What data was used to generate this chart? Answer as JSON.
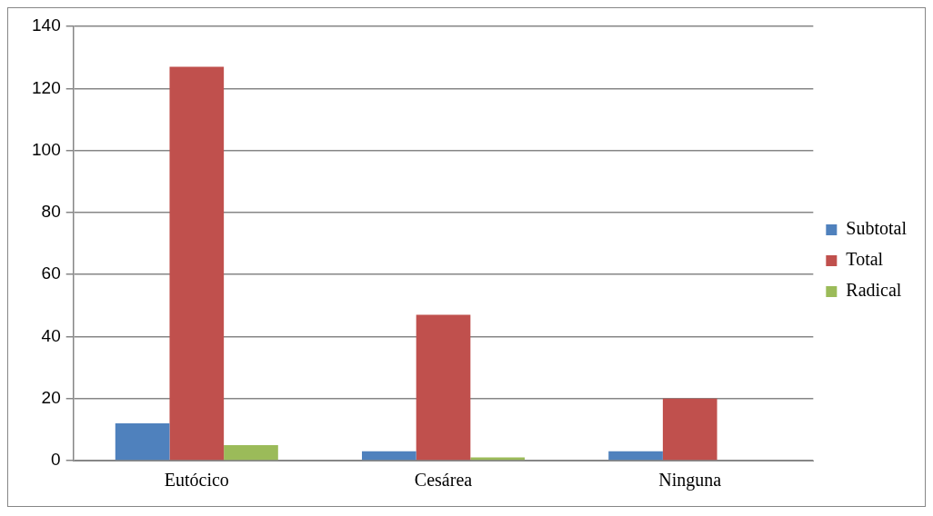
{
  "chart_data": {
    "type": "bar",
    "categories": [
      "Eutócico",
      "Cesárea",
      "Ninguna"
    ],
    "series": [
      {
        "name": "Subtotal",
        "color": "#4f81bd",
        "values": [
          12,
          3,
          3
        ]
      },
      {
        "name": "Total",
        "color": "#c0504d",
        "values": [
          127,
          47,
          20
        ]
      },
      {
        "name": "Radical",
        "color": "#9bbb59",
        "values": [
          5,
          1,
          0
        ]
      }
    ],
    "ylim": [
      0,
      140
    ],
    "yticks": [
      0,
      20,
      40,
      60,
      80,
      100,
      120,
      140
    ],
    "grid": "y",
    "legend": "right"
  }
}
